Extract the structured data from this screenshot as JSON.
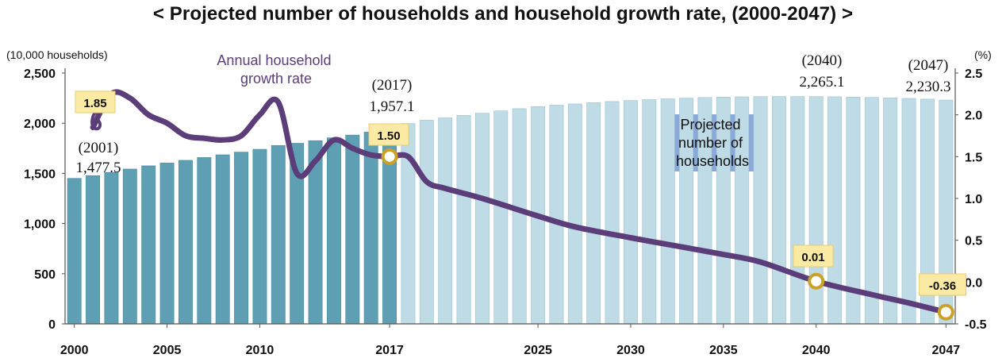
{
  "title": "< Projected number of households and household growth rate, (2000-2047) >",
  "chart_data": {
    "type": "bar",
    "left_axis": {
      "unit": "(10,000 households)",
      "range": [
        0,
        2500
      ],
      "ticks": [
        "0",
        "500",
        "1,000",
        "1,500",
        "2,000",
        "2,500"
      ]
    },
    "right_axis": {
      "unit": "(%)",
      "range": [
        -0.5,
        2.5
      ],
      "ticks": [
        "-0.5",
        "0.0",
        "0.5",
        "1.0",
        "1.5",
        "2.0",
        "2.5"
      ]
    },
    "x_tick_labels": [
      "2000",
      "2005",
      "2010",
      "2017",
      "2025",
      "2030",
      "2035",
      "2040",
      "2047"
    ],
    "x_tick_years": [
      2000,
      2005,
      2010,
      2017,
      2025,
      2030,
      2035,
      2040,
      2047
    ],
    "bars": {
      "name": "Projected number of households",
      "years": [
        2000,
        2001,
        2002,
        2003,
        2004,
        2005,
        2006,
        2007,
        2008,
        2009,
        2010,
        2011,
        2012,
        2013,
        2014,
        2015,
        2016,
        2017,
        2018,
        2019,
        2020,
        2021,
        2022,
        2023,
        2024,
        2025,
        2026,
        2027,
        2028,
        2029,
        2030,
        2031,
        2032,
        2033,
        2034,
        2035,
        2036,
        2037,
        2038,
        2039,
        2040,
        2041,
        2042,
        2043,
        2044,
        2045,
        2046,
        2047
      ],
      "values": [
        1450,
        1477.5,
        1510,
        1543,
        1575,
        1603,
        1630,
        1658,
        1685,
        1712,
        1740,
        1778,
        1800,
        1826,
        1854,
        1882,
        1911,
        1957.1,
        1997,
        2030,
        2053,
        2078,
        2100,
        2123,
        2145,
        2165,
        2180,
        2192,
        2205,
        2216,
        2226,
        2235,
        2243,
        2250,
        2256,
        2260,
        2263,
        2265,
        2266,
        2265.5,
        2265.1,
        2263,
        2260,
        2257,
        2252,
        2247,
        2240,
        2230.3
      ],
      "actual_color": "#5f9fb4",
      "projected_color": "#bedbe6",
      "projected_from": 2018
    },
    "line": {
      "name": "Annual household growth rate",
      "color": "#5b3d7a",
      "years": [
        2001,
        2002,
        2003,
        2004,
        2005,
        2006,
        2007,
        2008,
        2009,
        2010,
        2011,
        2012,
        2013,
        2014,
        2015,
        2016,
        2017,
        2018,
        2019,
        2020,
        2022,
        2025,
        2027,
        2030,
        2033,
        2035,
        2037,
        2040,
        2043,
        2045,
        2047
      ],
      "values": [
        1.85,
        2.25,
        2.2,
        2.0,
        1.9,
        1.75,
        1.72,
        1.7,
        1.75,
        2.0,
        2.15,
        1.3,
        1.45,
        1.7,
        1.6,
        1.52,
        1.5,
        1.5,
        1.2,
        1.12,
        1.0,
        0.79,
        0.66,
        0.53,
        0.41,
        0.33,
        0.24,
        0.01,
        -0.15,
        -0.25,
        -0.36
      ]
    },
    "annotations": [
      {
        "year": 2001,
        "year_label": "(2001)",
        "value_label": "1,477.5"
      },
      {
        "year": 2017,
        "year_label": "(2017)",
        "value_label": "1,957.1"
      },
      {
        "year": 2040,
        "year_label": "(2040)",
        "value_label": "2,265.1"
      },
      {
        "year": 2047,
        "year_label": "(2047)",
        "value_label": "2,230.3"
      }
    ],
    "highlighted_points": [
      {
        "year": 2001,
        "label": "1.85"
      },
      {
        "year": 2017,
        "label": "1.50"
      },
      {
        "year": 2040,
        "label": "0.01"
      },
      {
        "year": 2047,
        "label": "-0.36"
      }
    ],
    "series_labels": {
      "line": [
        "Annual household",
        "growth rate"
      ],
      "bars": [
        "Projected",
        "number of",
        "households"
      ]
    }
  }
}
